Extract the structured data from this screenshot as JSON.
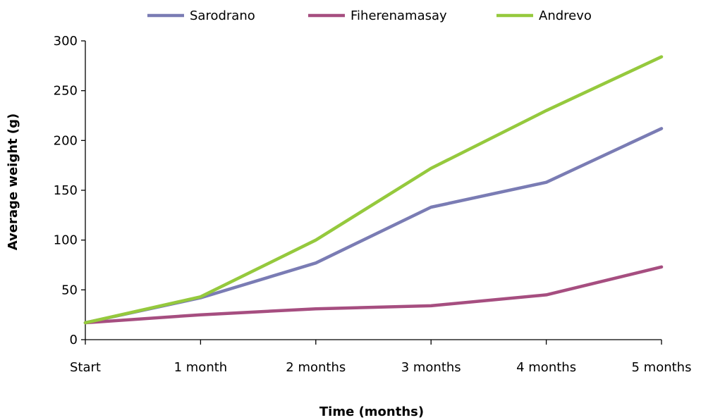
{
  "chart_data": {
    "type": "line",
    "title": "",
    "xlabel": "Time (months)",
    "ylabel": "Average weight (g)",
    "categories": [
      "Start",
      "1 month",
      "2 months",
      "3 months",
      "4 months",
      "5 months"
    ],
    "ylim": [
      0,
      300
    ],
    "yticks": [
      "0",
      "50",
      "100",
      "150",
      "200",
      "250",
      "300"
    ],
    "grid": false,
    "legend_position": "top",
    "series": [
      {
        "name": "Sarodrano",
        "color": "#7a7cb4",
        "values": [
          17,
          42,
          77,
          133,
          158,
          212
        ]
      },
      {
        "name": "Fiherenamasay",
        "color": "#a64e80",
        "values": [
          17,
          25,
          31,
          34,
          45,
          73
        ]
      },
      {
        "name": "Andrevo",
        "color": "#95c93d",
        "values": [
          17,
          43,
          100,
          172,
          230,
          284
        ]
      }
    ]
  }
}
